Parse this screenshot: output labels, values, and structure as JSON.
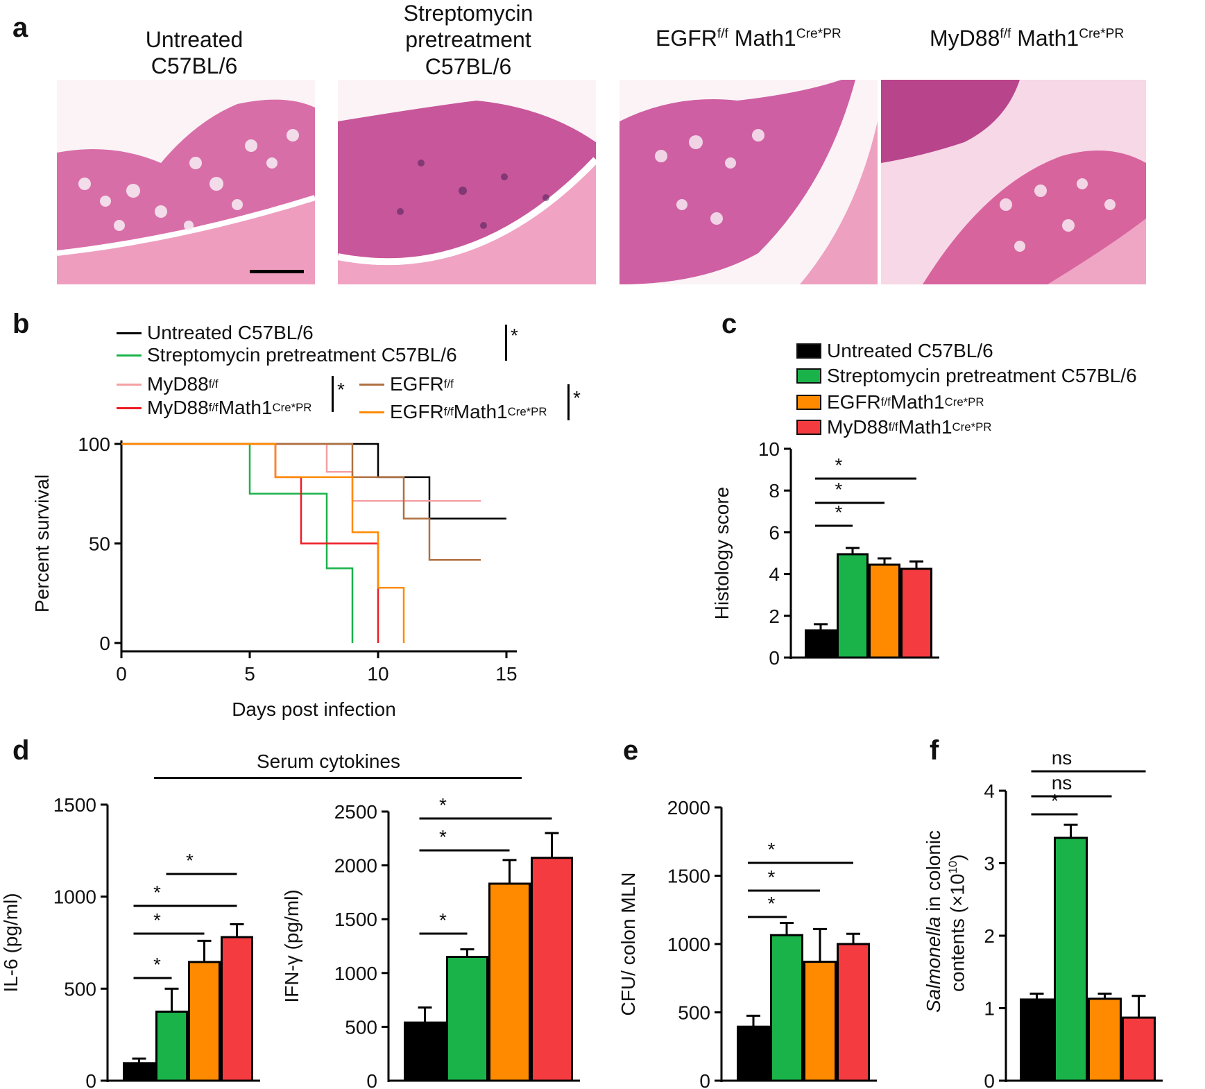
{
  "colors": {
    "untreated": "#000000",
    "strep": "#1ab34a",
    "egfr": "#ff8a00",
    "myd88": "#f43b3f",
    "myd88ff": "#f4a0a4",
    "egfrff": "#b07040",
    "survival_egfr": "#ff8a00",
    "survival_myd88": "#ee1c24"
  },
  "panel_a": {
    "label": "a",
    "titles": [
      {
        "line1": "Untreated",
        "line2": "C57BL/6"
      },
      {
        "line1": "Streptomycin",
        "line2": "pretreatment",
        "line3": "C57BL/6"
      },
      {
        "main": "EGFR",
        "sup1": "f/f",
        "mid": " Math1",
        "sup2": "Cre*PR"
      },
      {
        "main": "MyD88",
        "sup1": "f/f",
        "mid": " Math1",
        "sup2": "Cre*PR"
      }
    ]
  },
  "panel_b": {
    "label": "b",
    "legend": {
      "untreated": "Untreated C57BL/6",
      "strep": "Streptomycin pretreatment C57BL/6",
      "myd88ff": {
        "main": "MyD88",
        "sup": "f/f"
      },
      "myd88cre": {
        "main": "MyD88",
        "sup1": "f/f",
        "mid": "Math1",
        "sup2": "Cre*PR"
      },
      "egfrff": {
        "main": "EGFR",
        "sup": "f/f"
      },
      "egfrcre": {
        "main": "EGFR",
        "sup1": "f/f",
        "mid": " Math1",
        "sup2": "Cre*PR"
      },
      "sig": "*"
    }
  },
  "panel_c": {
    "label": "c",
    "legend": {
      "untreated": "Untreated C57BL/6",
      "strep": "Streptomycin pretreatment C57BL/6",
      "egfr": {
        "main": "EGFR",
        "sup1": "f/f",
        "mid": " Math1",
        "sup2": "Cre*PR"
      },
      "myd88": {
        "main": "MyD88",
        "sup1": "f/f",
        "mid": "Math1",
        "sup2": "Cre*PR"
      }
    }
  },
  "panel_d": {
    "label": "d",
    "group_title": "Serum cytokines"
  },
  "panel_e": {
    "label": "e"
  },
  "panel_f": {
    "label": "f",
    "ylabel_italic": "Salmonella",
    "ylabel_rest": " in colonic",
    "ylabel_line2": "contents (×10",
    "ylabel_sup": "10",
    "ylabel_close": ")"
  },
  "chart_data": [
    {
      "id": "b",
      "type": "line",
      "subtype": "kaplan-meier",
      "xlabel": "Days post infection",
      "ylabel": "Percent  survival",
      "xlim": [
        0,
        15
      ],
      "ylim": [
        0,
        100
      ],
      "xticks": [
        0,
        5,
        10,
        15
      ],
      "yticks": [
        0,
        50,
        100
      ],
      "series": [
        {
          "name": "Untreated C57BL/6",
          "color": "#000000",
          "steps": [
            [
              0,
              100
            ],
            [
              10,
              100
            ],
            [
              10,
              83.3
            ],
            [
              12,
              83.3
            ],
            [
              12,
              62.5
            ],
            [
              15,
              62.5
            ]
          ]
        },
        {
          "name": "Streptomycin pretreatment C57BL/6",
          "color": "#1ab34a",
          "steps": [
            [
              0,
              100
            ],
            [
              5,
              100
            ],
            [
              5,
              75
            ],
            [
              8,
              75
            ],
            [
              8,
              37.5
            ],
            [
              9,
              37.5
            ],
            [
              9,
              0
            ]
          ]
        },
        {
          "name": "MyD88 f/f",
          "color": "#f4a0a4",
          "steps": [
            [
              0,
              100
            ],
            [
              8,
              100
            ],
            [
              8,
              86
            ],
            [
              9,
              86
            ],
            [
              9,
              71.4
            ],
            [
              14,
              71.4
            ]
          ]
        },
        {
          "name": "MyD88 f/f Math1 Cre*PR",
          "color": "#ee1c24",
          "steps": [
            [
              0,
              100
            ],
            [
              6,
              100
            ],
            [
              6,
              83.3
            ],
            [
              7,
              83.3
            ],
            [
              7,
              50
            ],
            [
              10,
              50
            ],
            [
              10,
              0
            ]
          ]
        },
        {
          "name": "EGFR f/f",
          "color": "#b07040",
          "steps": [
            [
              0,
              100
            ],
            [
              9,
              100
            ],
            [
              9,
              83.3
            ],
            [
              11,
              83.3
            ],
            [
              11,
              62.5
            ],
            [
              12,
              62.5
            ],
            [
              12,
              41.7
            ],
            [
              14,
              41.7
            ]
          ]
        },
        {
          "name": "EGFR f/f Math1 Cre*PR",
          "color": "#ff8a00",
          "steps": [
            [
              0,
              100
            ],
            [
              6,
              100
            ],
            [
              6,
              83.3
            ],
            [
              9,
              83.3
            ],
            [
              9,
              55.6
            ],
            [
              10,
              55.6
            ],
            [
              10,
              27.8
            ],
            [
              11,
              27.8
            ],
            [
              11,
              0
            ]
          ]
        }
      ]
    },
    {
      "id": "c",
      "type": "bar",
      "ylabel": "Histology score",
      "ylim": [
        0,
        10
      ],
      "yticks": [
        0,
        2,
        4,
        6,
        8,
        10
      ],
      "categories": [
        "Untreated C57BL/6",
        "Streptomycin pretreatment C57BL/6",
        "EGFR f/f Math1 Cre*PR",
        "MyD88 f/f Math1 Cre*PR"
      ],
      "values": [
        1.3,
        4.95,
        4.45,
        4.25
      ],
      "errors": [
        0.3,
        0.3,
        0.3,
        0.35
      ],
      "significance": [
        {
          "from": 0,
          "to": 1,
          "label": "*"
        },
        {
          "from": 0,
          "to": 2,
          "label": "*"
        },
        {
          "from": 0,
          "to": 3,
          "label": "*"
        }
      ]
    },
    {
      "id": "d1",
      "type": "bar",
      "ylabel": "IL-6 (pg/ml)",
      "ylim": [
        0,
        1500
      ],
      "yticks": [
        0,
        500,
        1000,
        1500
      ],
      "categories": [
        "Untreated C57BL/6",
        "Streptomycin pretreatment C57BL/6",
        "EGFR f/f Math1 Cre*PR",
        "MyD88 f/f Math1 Cre*PR"
      ],
      "values": [
        95,
        375,
        645,
        780
      ],
      "errors": [
        25,
        125,
        115,
        70
      ],
      "significance": [
        {
          "from": 0,
          "to": 1,
          "label": "*"
        },
        {
          "from": 0,
          "to": 2,
          "label": "*"
        },
        {
          "from": 0,
          "to": 3,
          "label": "*"
        },
        {
          "from": 1,
          "to": 3,
          "label": "*"
        }
      ]
    },
    {
      "id": "d2",
      "type": "bar",
      "ylabel": "IFN-γ (pg/ml)",
      "ylim": [
        0,
        2500
      ],
      "yticks": [
        500,
        1000,
        1500,
        2000,
        2500
      ],
      "categories": [
        "Untreated C57BL/6",
        "Streptomycin pretreatment C57BL/6",
        "EGFR f/f Math1 Cre*PR",
        "MyD88 f/f Math1 Cre*PR"
      ],
      "values": [
        540,
        1150,
        1830,
        2070
      ],
      "errors": [
        140,
        70,
        220,
        230
      ],
      "significance": [
        {
          "from": 0,
          "to": 1,
          "label": "*"
        },
        {
          "from": 0,
          "to": 2,
          "label": "*"
        },
        {
          "from": 0,
          "to": 3,
          "label": "*"
        }
      ]
    },
    {
      "id": "e",
      "type": "bar",
      "ylabel": "CFU/ colon MLN",
      "ylim": [
        0,
        2000
      ],
      "yticks": [
        0,
        500,
        1000,
        1500,
        2000
      ],
      "categories": [
        "Untreated C57BL/6",
        "Streptomycin pretreatment C57BL/6",
        "EGFR f/f Math1 Cre*PR",
        "MyD88 f/f Math1 Cre*PR"
      ],
      "values": [
        395,
        1065,
        870,
        1000
      ],
      "errors": [
        80,
        90,
        240,
        75
      ],
      "significance": [
        {
          "from": 0,
          "to": 1,
          "label": "*"
        },
        {
          "from": 0,
          "to": 2,
          "label": "*"
        },
        {
          "from": 0,
          "to": 3,
          "label": "*"
        }
      ]
    },
    {
      "id": "f",
      "type": "bar",
      "ylabel": "Salmonella in colonic contents (×10^10)",
      "ylim": [
        0,
        4
      ],
      "yticks": [
        0,
        1,
        2,
        3,
        4
      ],
      "categories": [
        "Untreated C57BL/6",
        "Streptomycin pretreatment C57BL/6",
        "EGFR f/f Math1 Cre*PR",
        "MyD88 f/f Math1 Cre*PR"
      ],
      "values": [
        1.12,
        3.35,
        1.13,
        0.87
      ],
      "errors": [
        0.08,
        0.18,
        0.07,
        0.3
      ],
      "significance": [
        {
          "from": 0,
          "to": 1,
          "label": "*"
        },
        {
          "from": 0,
          "to": 2,
          "label": "ns"
        },
        {
          "from": 0,
          "to": 3,
          "label": "ns"
        }
      ]
    }
  ]
}
